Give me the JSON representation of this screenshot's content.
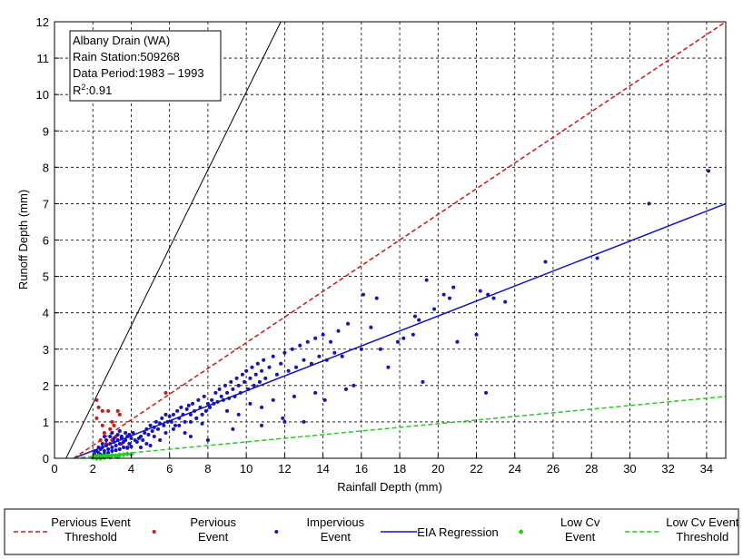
{
  "chart_data": {
    "type": "scatter",
    "title": "",
    "xlabel": "Rainfall Depth (mm)",
    "ylabel": "Runoff Depth (mm)",
    "xlim": [
      0,
      35
    ],
    "ylim": [
      0,
      12
    ],
    "xticks": [
      0,
      2,
      4,
      6,
      8,
      10,
      12,
      14,
      16,
      18,
      20,
      22,
      24,
      26,
      28,
      30,
      32,
      34
    ],
    "yticks": [
      0,
      1,
      2,
      3,
      4,
      5,
      6,
      7,
      8,
      9,
      10,
      11,
      12
    ],
    "grid": true,
    "legend_placement": "bottom",
    "annotation": {
      "station_name": "Albany Drain (WA)",
      "rain_station": "Rain Station:509268",
      "data_period": "Data Period:1983 – 1993",
      "r2_label": "R",
      "r2_sup": "2",
      "r2_value": ":0.91"
    },
    "lines": [
      {
        "key": "pervious_threshold",
        "name": "Pervious Event Threshold",
        "legend_lines": [
          "Pervious Event",
          "Threshold"
        ],
        "color": "#dd1111",
        "dash": "dashed",
        "x": [
          1.0,
          35.0
        ],
        "y": [
          0.0,
          12.0
        ]
      },
      {
        "key": "eia_regression",
        "name": "EIA Regression",
        "legend_lines": [
          "EIA Regression"
        ],
        "color": "#1111cc",
        "dash": "solid",
        "x": [
          1.0,
          35.0
        ],
        "y": [
          0.0,
          7.0
        ]
      },
      {
        "key": "lowcv_threshold",
        "name": "Low Cv Event Threshold",
        "legend_lines": [
          "Low Cv Event",
          "Threshold"
        ],
        "color": "#22cc22",
        "dash": "dashed",
        "x": [
          1.0,
          35.0
        ],
        "y": [
          0.0,
          1.7
        ]
      },
      {
        "key": "reference_line",
        "name": "",
        "legend_lines": [],
        "color": "#000000",
        "dash": "solid",
        "x": [
          0.6,
          11.8
        ],
        "y": [
          0.0,
          12.0
        ]
      }
    ],
    "series": [
      {
        "key": "pervious_event",
        "name": "Pervious Event",
        "legend_lines": [
          "Pervious",
          "Event"
        ],
        "color": "#dd1111",
        "marker": "dot",
        "x": [
          2.2,
          2.3,
          2.5,
          2.8,
          3.0,
          3.1,
          3.3,
          3.4,
          2.6,
          2.9,
          3.2,
          5.8,
          2.4,
          2.7,
          3.0,
          3.5,
          2.5,
          2.2
        ],
        "y": [
          1.6,
          1.4,
          1.3,
          1.3,
          1.0,
          0.9,
          1.3,
          1.2,
          0.7,
          0.8,
          0.6,
          1.8,
          0.5,
          0.4,
          0.5,
          0.4,
          0.9,
          1.1
        ]
      },
      {
        "key": "impervious_event",
        "name": "Impervious Event",
        "legend_lines": [
          "Impervious",
          "Event"
        ],
        "color": "#1111cc",
        "marker": "dot",
        "x": [
          2.1,
          2.2,
          2.3,
          2.4,
          2.5,
          2.6,
          2.7,
          2.8,
          2.9,
          3.0,
          3.1,
          3.2,
          3.3,
          3.4,
          3.5,
          3.6,
          3.7,
          3.8,
          3.9,
          4.0,
          2.2,
          2.4,
          2.6,
          2.8,
          3.0,
          3.2,
          3.4,
          3.6,
          3.8,
          4.0,
          2.3,
          2.5,
          2.7,
          2.9,
          3.1,
          3.3,
          3.5,
          3.7,
          3.9,
          4.1,
          2.1,
          2.6,
          3.0,
          3.4,
          3.8,
          4.2,
          4.3,
          4.4,
          4.5,
          4.6,
          4.7,
          4.8,
          4.9,
          5.0,
          5.1,
          5.2,
          5.3,
          5.4,
          5.5,
          5.6,
          5.7,
          5.8,
          5.9,
          6.0,
          4.5,
          4.8,
          5.0,
          5.2,
          5.5,
          5.8,
          6.1,
          6.2,
          6.3,
          6.4,
          6.5,
          6.6,
          6.7,
          6.8,
          6.9,
          7.0,
          7.1,
          7.2,
          7.3,
          7.4,
          7.5,
          7.6,
          7.7,
          7.8,
          7.9,
          8.0,
          6.2,
          6.5,
          6.8,
          7.1,
          7.4,
          7.7,
          8.1,
          8.2,
          8.3,
          8.4,
          8.5,
          8.6,
          8.7,
          8.8,
          8.9,
          9.0,
          9.1,
          9.2,
          9.3,
          9.4,
          9.5,
          9.6,
          9.7,
          9.8,
          9.9,
          10.0,
          10.1,
          10.2,
          10.3,
          10.4,
          10.5,
          10.6,
          10.7,
          10.8,
          10.9,
          11.0,
          11.2,
          11.4,
          11.6,
          11.8,
          12.0,
          12.2,
          12.4,
          12.6,
          12.8,
          13.0,
          13.2,
          13.4,
          13.6,
          13.8,
          14.0,
          14.2,
          14.4,
          14.6,
          14.8,
          15.0,
          9.0,
          9.6,
          10.2,
          10.8,
          11.4,
          11.9,
          12.5,
          13.0,
          13.6,
          14.1,
          15.3,
          15.6,
          16.1,
          16.5,
          16.8,
          17.4,
          17.9,
          18.2,
          18.7,
          19.0,
          19.4,
          20.3,
          20.8,
          21.0,
          22.0,
          22.2,
          22.5,
          22.9,
          23.5,
          25.6,
          28.3,
          31.0,
          34.1,
          16.0,
          17.0,
          18.8,
          19.8,
          20.6,
          22.6,
          15.2,
          19.2,
          12.0,
          10.8,
          9.3,
          8.0,
          7.1
        ],
        "y": [
          0.1,
          0.2,
          0.15,
          0.25,
          0.3,
          0.2,
          0.35,
          0.25,
          0.4,
          0.3,
          0.45,
          0.35,
          0.5,
          0.4,
          0.55,
          0.45,
          0.5,
          0.6,
          0.4,
          0.55,
          0.05,
          0.1,
          0.12,
          0.15,
          0.2,
          0.22,
          0.25,
          0.3,
          0.28,
          0.32,
          0.3,
          0.4,
          0.5,
          0.6,
          0.55,
          0.65,
          0.6,
          0.7,
          0.65,
          0.7,
          0.2,
          0.6,
          0.7,
          0.75,
          0.3,
          0.5,
          0.45,
          0.55,
          0.6,
          0.5,
          0.7,
          0.8,
          0.65,
          0.9,
          0.75,
          0.85,
          1.0,
          0.8,
          0.95,
          1.1,
          0.9,
          1.2,
          1.0,
          1.15,
          0.3,
          0.4,
          0.35,
          0.6,
          0.5,
          0.7,
          1.0,
          1.2,
          0.9,
          1.3,
          1.1,
          1.4,
          1.2,
          1.0,
          1.35,
          1.45,
          1.2,
          1.5,
          1.3,
          1.1,
          1.6,
          1.4,
          1.2,
          1.7,
          1.3,
          1.5,
          0.8,
          0.9,
          0.7,
          1.0,
          1.1,
          0.95,
          1.4,
          1.6,
          1.5,
          1.8,
          1.55,
          1.9,
          1.7,
          1.6,
          2.0,
          1.8,
          1.65,
          2.1,
          1.9,
          1.7,
          2.2,
          2.0,
          1.8,
          2.3,
          2.1,
          2.4,
          1.9,
          2.2,
          2.5,
          2.0,
          2.3,
          2.6,
          2.1,
          2.4,
          2.7,
          2.2,
          2.5,
          2.8,
          2.3,
          2.6,
          2.9,
          2.4,
          3.0,
          2.5,
          3.1,
          2.7,
          3.2,
          2.6,
          3.3,
          2.8,
          3.4,
          2.7,
          3.2,
          2.9,
          3.5,
          2.8,
          1.3,
          1.2,
          1.5,
          1.4,
          1.6,
          1.1,
          1.7,
          1.0,
          1.8,
          1.6,
          3.7,
          2.0,
          4.5,
          3.6,
          4.4,
          2.5,
          3.2,
          3.3,
          3.4,
          3.8,
          4.9,
          4.5,
          4.7,
          3.2,
          3.4,
          4.6,
          1.8,
          4.4,
          4.3,
          5.4,
          5.5,
          7.0,
          7.9,
          3.0,
          3.0,
          3.9,
          4.1,
          4.4,
          4.5,
          1.9,
          2.1,
          1.0,
          0.9,
          0.8,
          0.5,
          0.6
        ]
      },
      {
        "key": "lowcv_event",
        "name": "Low Cv Event",
        "legend_lines": [
          "Low Cv",
          "Event"
        ],
        "color": "#22cc22",
        "marker": "diamond",
        "x": [
          2.0,
          2.1,
          2.2,
          2.3,
          2.4,
          2.5,
          2.6,
          2.7,
          2.2,
          2.4,
          2.6,
          2.8,
          3.0,
          3.2,
          3.4,
          3.6,
          3.8,
          4.0,
          2.9,
          3.3
        ],
        "y": [
          0.02,
          0.05,
          0.03,
          0.06,
          0.04,
          0.07,
          0.05,
          0.08,
          0.0,
          0.0,
          0.02,
          0.06,
          0.08,
          0.07,
          0.09,
          0.1,
          0.12,
          0.11,
          0.03,
          0.04
        ]
      }
    ]
  }
}
